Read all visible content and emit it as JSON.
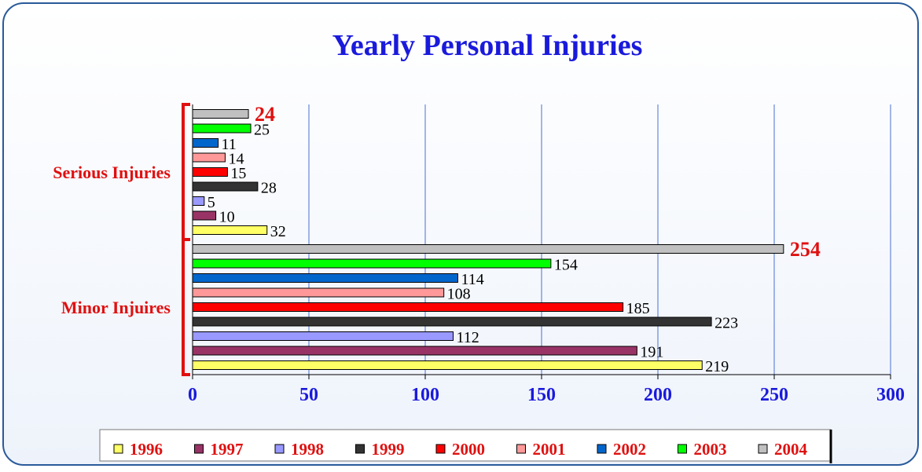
{
  "chart_data": {
    "type": "bar",
    "orientation": "horizontal",
    "title": "Yearly Personal Injuries",
    "categories": [
      "Serious Injuries",
      "Minor Injuires"
    ],
    "series": [
      {
        "name": "1996",
        "color": "#ffff66",
        "values": [
          32,
          219
        ]
      },
      {
        "name": "1997",
        "color": "#993366",
        "values": [
          10,
          191
        ]
      },
      {
        "name": "1998",
        "color": "#9999ff",
        "values": [
          5,
          112
        ]
      },
      {
        "name": "1999",
        "color": "#333333",
        "values": [
          28,
          223
        ]
      },
      {
        "name": "2000",
        "color": "#ff0000",
        "values": [
          15,
          185
        ]
      },
      {
        "name": "2001",
        "color": "#ff9999",
        "values": [
          14,
          108
        ]
      },
      {
        "name": "2002",
        "color": "#0066cc",
        "values": [
          11,
          114
        ]
      },
      {
        "name": "2003",
        "color": "#00ff00",
        "values": [
          25,
          154
        ]
      },
      {
        "name": "2004",
        "color": "#c0c0c0",
        "values": [
          24,
          254
        ]
      }
    ],
    "xlim": [
      0,
      300
    ],
    "xticks": [
      0,
      50,
      100,
      150,
      200,
      250,
      300
    ],
    "grid": true,
    "legend": "bottom"
  }
}
